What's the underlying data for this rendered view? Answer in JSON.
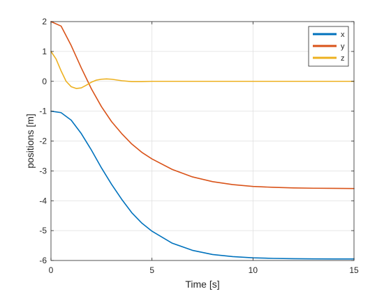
{
  "chart_data": {
    "type": "line",
    "title": "",
    "xlabel": "Time [s]",
    "ylabel": "positions [m]",
    "xlim": [
      0,
      15
    ],
    "ylim": [
      -6,
      2
    ],
    "xticks": [
      0,
      5,
      10,
      15
    ],
    "yticks": [
      2,
      1,
      0,
      -1,
      -2,
      -3,
      -4,
      -5,
      -6
    ],
    "grid": true,
    "legend_position": "top-right",
    "series": [
      {
        "name": "x",
        "color": "#0072BD",
        "x": [
          0,
          0.5,
          1,
          1.5,
          2,
          2.5,
          3,
          3.5,
          4,
          4.5,
          5,
          6,
          7,
          8,
          9,
          10,
          11,
          12,
          13,
          14,
          15
        ],
        "y": [
          -1.0,
          -1.05,
          -1.3,
          -1.75,
          -2.3,
          -2.9,
          -3.45,
          -3.95,
          -4.4,
          -4.75,
          -5.02,
          -5.42,
          -5.66,
          -5.8,
          -5.87,
          -5.91,
          -5.93,
          -5.94,
          -5.945,
          -5.948,
          -5.95
        ]
      },
      {
        "name": "y",
        "color": "#D95319",
        "x": [
          0,
          0.5,
          1,
          1.5,
          2,
          2.5,
          3,
          3.5,
          4,
          4.5,
          5,
          6,
          7,
          8,
          9,
          10,
          11,
          12,
          13,
          14,
          15
        ],
        "y": [
          2.0,
          1.85,
          1.2,
          0.45,
          -0.25,
          -0.85,
          -1.35,
          -1.75,
          -2.1,
          -2.38,
          -2.6,
          -2.95,
          -3.2,
          -3.36,
          -3.46,
          -3.52,
          -3.55,
          -3.57,
          -3.58,
          -3.585,
          -3.59
        ]
      },
      {
        "name": "z",
        "color": "#EDB120",
        "x": [
          0,
          0.25,
          0.5,
          0.75,
          1,
          1.25,
          1.5,
          1.75,
          2,
          2.25,
          2.5,
          2.75,
          3,
          3.5,
          4,
          4.5,
          5,
          6,
          8,
          10,
          12,
          15
        ],
        "y": [
          1.0,
          0.75,
          0.35,
          0.0,
          -0.18,
          -0.24,
          -0.22,
          -0.13,
          -0.03,
          0.04,
          0.07,
          0.08,
          0.07,
          0.02,
          -0.01,
          -0.01,
          0.0,
          0.0,
          0.0,
          0.0,
          0.0,
          0.0
        ]
      }
    ]
  }
}
